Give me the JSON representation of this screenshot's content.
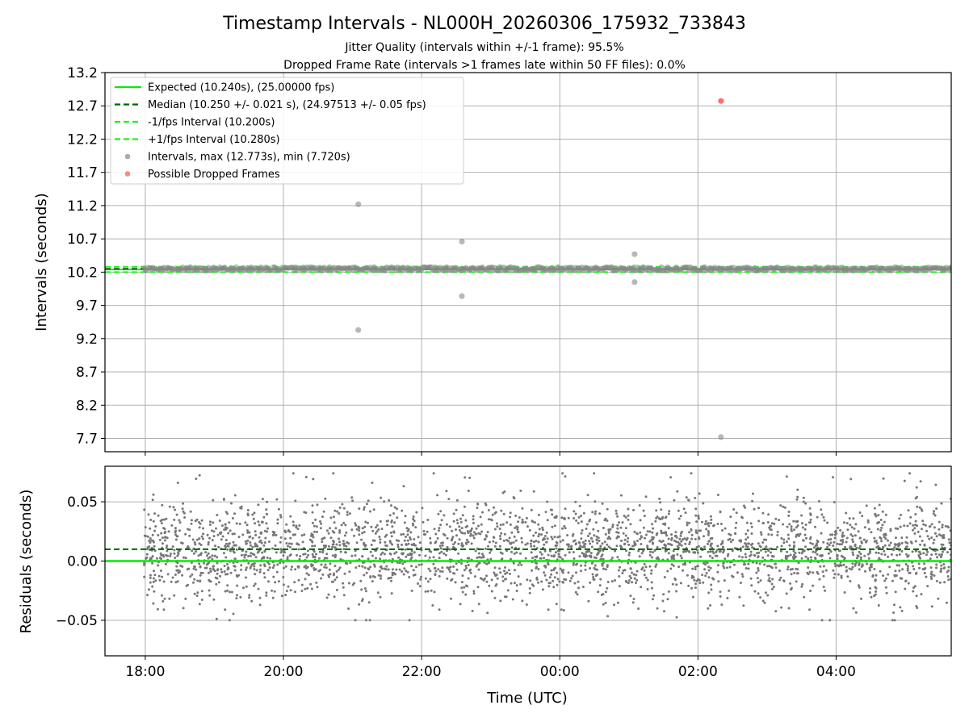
{
  "title": "Timestamp Intervals - NL000H_20260306_175932_733843",
  "subtitle_jitter": "Jitter Quality (intervals within +/-1 frame): 95.5%",
  "subtitle_dropped": "Dropped Frame Rate (intervals >1 frames late within 50 FF files): 0.0%",
  "colors": {
    "expected": "#00ee00",
    "median": "#006400",
    "fps_bounds": "#22ee22",
    "intervals": "#888888",
    "dropped": "#ff5555",
    "residual_points": "#777777",
    "grid": "#b0b0b0"
  },
  "chart_data": [
    {
      "type": "scatter",
      "panel": "top",
      "ylabel": "Intervals (seconds)",
      "xlabel": "",
      "x_domain": [
        "17:25",
        "05:40"
      ],
      "ylim": [
        7.5,
        13.2
      ],
      "y_ticks": [
        "13.2",
        "12.7",
        "12.2",
        "11.7",
        "11.2",
        "10.7",
        "10.2",
        "9.7",
        "9.2",
        "8.7",
        "8.2",
        "7.7"
      ],
      "grid": true,
      "legend_position": "top-left",
      "legend": [
        {
          "label": "Expected (10.240s), (25.00000 fps)",
          "kind": "line-solid"
        },
        {
          "label": "Median (10.250 +/- 0.021 s), (24.97513 +/- 0.05 fps)",
          "kind": "line-dashed-dark"
        },
        {
          "label": "-1/fps Interval (10.200s)",
          "kind": "line-dashed-light"
        },
        {
          "label": "+1/fps Interval (10.280s)",
          "kind": "line-dashed-light"
        },
        {
          "label": "Intervals, max (12.773s), min (7.720s)",
          "kind": "dot-gray"
        },
        {
          "label": "Possible Dropped Frames",
          "kind": "dot-red"
        }
      ],
      "reference_lines": {
        "expected": 10.24,
        "median": 10.25,
        "minus_1fps": 10.2,
        "plus_1fps": 10.28
      },
      "interval_band": {
        "x_start": "17:59",
        "x_end": "05:40",
        "center": 10.25,
        "spread": 0.05
      },
      "outliers": [
        {
          "x": "21:05",
          "y": 11.22
        },
        {
          "x": "21:05",
          "y": 9.33
        },
        {
          "x": "22:35",
          "y": 10.66
        },
        {
          "x": "22:35",
          "y": 9.84
        },
        {
          "x": "01:05",
          "y": 10.47
        },
        {
          "x": "01:05",
          "y": 10.05
        },
        {
          "x": "02:20",
          "y": 7.72
        }
      ],
      "dropped_points": [
        {
          "x": "02:20",
          "y": 12.773
        }
      ]
    },
    {
      "type": "scatter",
      "panel": "bottom",
      "ylabel": "Residuals (seconds)",
      "xlabel": "Time (UTC)",
      "x_domain": [
        "17:25",
        "05:40"
      ],
      "x_ticks": [
        "18:00",
        "20:00",
        "22:00",
        "00:00",
        "02:00",
        "04:00"
      ],
      "ylim": [
        -0.08,
        0.08
      ],
      "y_ticks": [
        "0.05",
        "0.00",
        "−0.05"
      ],
      "grid": true,
      "reference_lines": {
        "zero": 0.0,
        "median_offset": 0.01
      },
      "residuals": {
        "x_start": "17:59",
        "x_end": "05:40",
        "mean": 0.01,
        "std": 0.021,
        "min": -0.05,
        "max": 0.074
      }
    }
  ]
}
